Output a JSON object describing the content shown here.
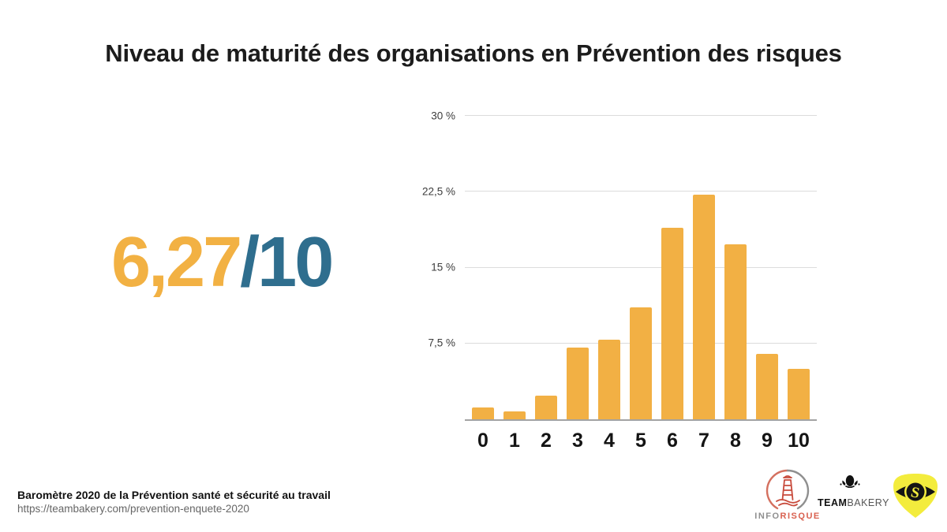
{
  "title": "Niveau de maturité des organisations en Prévention des risques",
  "score": {
    "value": "6,27",
    "denominator": "/10"
  },
  "colors": {
    "accent_orange": "#F2B044",
    "accent_blue": "#2F6E8E",
    "gridline": "#DCDCDC",
    "axis_line": "#A3A3A3",
    "logo_yellow": "#F3EC3D",
    "logo_red": "#D9604F",
    "logo_gray": "#8F8F8F"
  },
  "chart_data": {
    "type": "bar",
    "title": "",
    "xlabel": "",
    "ylabel": "",
    "unit": "%",
    "categories": [
      "0",
      "1",
      "2",
      "3",
      "4",
      "5",
      "6",
      "7",
      "8",
      "9",
      "10"
    ],
    "values": [
      1.2,
      0.8,
      2.3,
      7.1,
      7.9,
      11.1,
      18.9,
      22.2,
      17.3,
      6.5,
      5.0
    ],
    "ylim": [
      0,
      30
    ],
    "yticks": [
      {
        "value": 30,
        "label": "30 %"
      },
      {
        "value": 22.5,
        "label": "22,5 %"
      },
      {
        "value": 15,
        "label": "15 %"
      },
      {
        "value": 7.5,
        "label": "7,5 %"
      }
    ],
    "grid": "horizontal",
    "legend": "none",
    "bar_color": "#F2B044"
  },
  "footer": {
    "source_line1": "Baromètre 2020 de la Prévention santé et sécurité au travail",
    "source_line2": "https://teambakery.com/prevention-enquete-2020"
  },
  "logos": {
    "inforisque": {
      "icon": "lighthouse-icon",
      "text_gray": "INFO",
      "text_red": "RISQUE"
    },
    "teambakery": {
      "icon": "chef-hat-icon",
      "text_bold": "TEAM",
      "text_light": "BAKERY"
    },
    "shield": {
      "icon": "eye-shield-icon"
    }
  }
}
